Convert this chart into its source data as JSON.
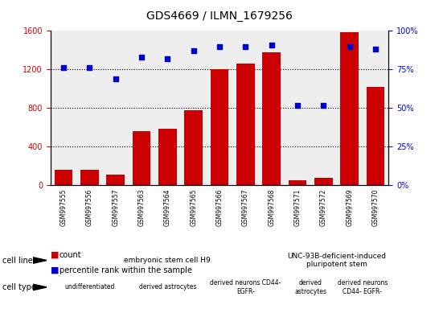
{
  "title": "GDS4669 / ILMN_1679256",
  "samples": [
    "GSM997555",
    "GSM997556",
    "GSM997557",
    "GSM997563",
    "GSM997564",
    "GSM997565",
    "GSM997566",
    "GSM997567",
    "GSM997568",
    "GSM997571",
    "GSM997572",
    "GSM997569",
    "GSM997570"
  ],
  "counts": [
    160,
    160,
    110,
    560,
    590,
    780,
    1200,
    1260,
    1380,
    55,
    75,
    1590,
    1020
  ],
  "percentiles": [
    76,
    76,
    69,
    83,
    82,
    87,
    90,
    90,
    91,
    52,
    52,
    90,
    88
  ],
  "ylim_left": [
    0,
    1600
  ],
  "ylim_right": [
    0,
    100
  ],
  "yticks_left": [
    0,
    400,
    800,
    1200,
    1600
  ],
  "yticks_right": [
    0,
    25,
    50,
    75,
    100
  ],
  "bar_color": "#cc0000",
  "dot_color": "#0000cc",
  "cell_line_groups": [
    {
      "label": "embryonic stem cell H9",
      "start": 0,
      "end": 8,
      "color": "#aaffaa"
    },
    {
      "label": "UNC-93B-deficient-induced\npluripotent stem",
      "start": 9,
      "end": 12,
      "color": "#44ee44"
    }
  ],
  "cell_type_groups": [
    {
      "label": "undifferentiated",
      "start": 0,
      "end": 2,
      "color": "#ffaaff"
    },
    {
      "label": "derived astrocytes",
      "start": 3,
      "end": 5,
      "color": "#ffaaff"
    },
    {
      "label": "derived neurons CD44-\nEGFR-",
      "start": 6,
      "end": 8,
      "color": "#ff77ff"
    },
    {
      "label": "derived\nastrocytes",
      "start": 9,
      "end": 10,
      "color": "#ff77ff"
    },
    {
      "label": "derived neurons\nCD44- EGFR-",
      "start": 11,
      "end": 12,
      "color": "#ff77ff"
    }
  ],
  "legend_count_label": "count",
  "legend_pct_label": "percentile rank within the sample",
  "bg_color": "#ffffff",
  "xtick_bg": "#cccccc"
}
